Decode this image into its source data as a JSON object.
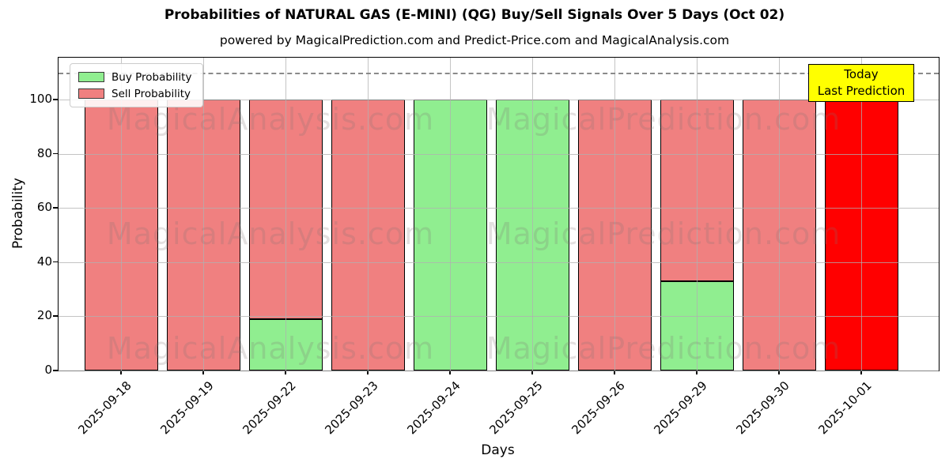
{
  "header": {
    "title": "Probabilities of NATURAL GAS (E-MINI) (QG) Buy/Sell Signals Over 5 Days (Oct 02)",
    "subtitle": "powered by MagicalPrediction.com and Predict-Price.com and MagicalAnalysis.com"
  },
  "axes": {
    "xlabel": "Days",
    "ylabel": "Probability",
    "yticks": [
      0,
      20,
      40,
      60,
      80,
      100
    ]
  },
  "legend": {
    "items": [
      {
        "key": "buy",
        "label": "Buy Probability",
        "color": "#90EE90"
      },
      {
        "key": "sell",
        "label": "Sell Probability",
        "color": "#F08080"
      }
    ]
  },
  "annotation": {
    "line1": "Today",
    "line2": "Last Prediction",
    "bg_color": "#ffff00"
  },
  "threshold": {
    "y": 110,
    "style": "dashed",
    "color": "#8a8a8a"
  },
  "watermarks": {
    "left_text": "MagicalAnalysis.com",
    "right_text": "MagicalPrediction.com",
    "rows": 3
  },
  "chart_data": {
    "type": "bar",
    "stacked": true,
    "title": "Probabilities of NATURAL GAS (E-MINI) (QG) Buy/Sell Signals Over 5 Days (Oct 02)",
    "xlabel": "Days",
    "ylabel": "Probability",
    "ylim": [
      0,
      115.5
    ],
    "grid": true,
    "legend_position": "upper left",
    "bar_edge_color": "#000000",
    "categories": [
      "2025-09-18",
      "2025-09-19",
      "2025-09-22",
      "2025-09-23",
      "2025-09-24",
      "2025-09-25",
      "2025-09-26",
      "2025-09-29",
      "2025-09-30",
      "2025-10-01"
    ],
    "series": [
      {
        "key": "buy",
        "name": "Buy Probability",
        "color": "#90EE90",
        "values": [
          0,
          0,
          19,
          0,
          100,
          100,
          0,
          33,
          0,
          0
        ]
      },
      {
        "key": "sell",
        "name": "Sell Probability",
        "color": "#F08080",
        "values": [
          100,
          100,
          81,
          100,
          0,
          0,
          100,
          67,
          100,
          0
        ]
      },
      {
        "key": "today",
        "name": "Today (Last Prediction)",
        "color": "#FF0000",
        "values": [
          0,
          0,
          0,
          0,
          0,
          0,
          0,
          0,
          0,
          100
        ]
      }
    ]
  }
}
